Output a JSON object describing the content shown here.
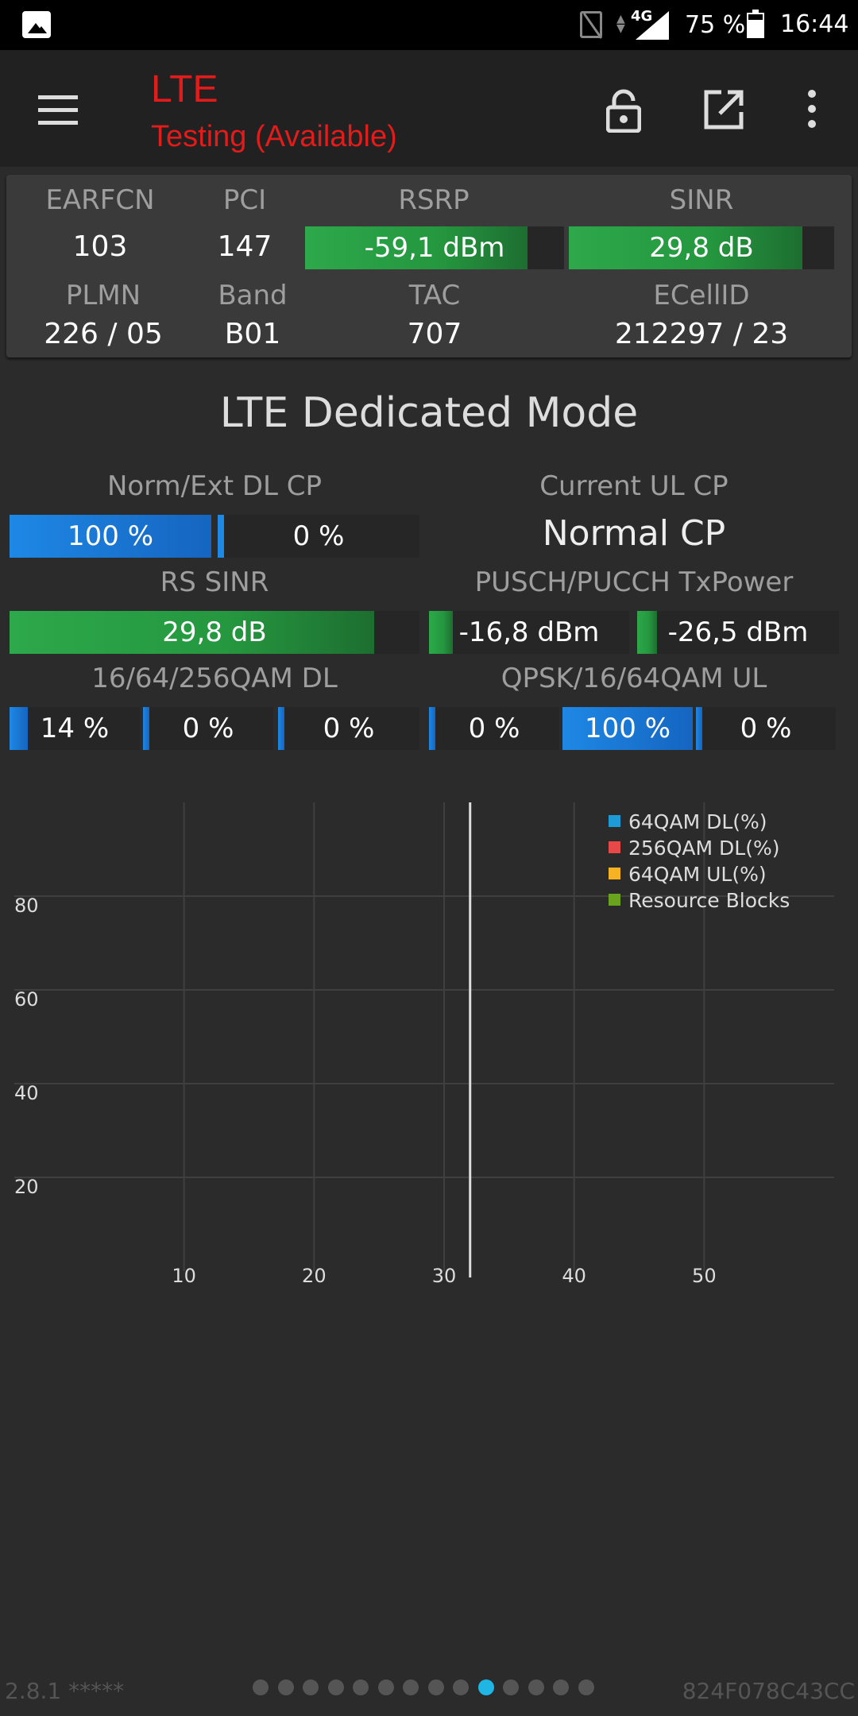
{
  "status_bar": {
    "network": "4G",
    "battery": "75 %",
    "time": "16:44",
    "icons": [
      "photo-icon",
      "no-sim-icon",
      "signal-icon",
      "battery-icon"
    ]
  },
  "app_bar": {
    "title": "LTE",
    "subtitle": "Testing (Available)",
    "title_color": "#e21b1b",
    "icons": [
      "menu-icon",
      "lock-icon",
      "open-external-icon",
      "more-vert-icon"
    ]
  },
  "summary": {
    "earfcn": {
      "label": "EARFCN",
      "value": "103"
    },
    "pci": {
      "label": "PCI",
      "value": "147"
    },
    "rsrp": {
      "label": "RSRP",
      "value": "-59,1 dBm",
      "level": 0.86
    },
    "sinr": {
      "label": "SINR",
      "value": "29,8 dB",
      "level": 0.88
    },
    "plmn": {
      "label": "PLMN",
      "value": "226 / 05"
    },
    "band": {
      "label": "Band",
      "value": "B01"
    },
    "tac": {
      "label": "TAC",
      "value": "707"
    },
    "ecellid": {
      "label": "ECellID",
      "value": "212297 / 23"
    }
  },
  "section_title": "LTE Dedicated Mode",
  "dedicated": {
    "dl_cp": {
      "label": "Norm/Ext DL CP",
      "values": [
        "100 %",
        "0 %"
      ],
      "levels": [
        1.0,
        0.0
      ]
    },
    "ul_cp": {
      "label": "Current UL CP",
      "value": "Normal CP"
    },
    "rs_sinr": {
      "label": "RS SINR",
      "value": "29,8 dB",
      "level": 0.89
    },
    "tx_power": {
      "label": "PUSCH/PUCCH TxPower",
      "values": [
        "-16,8 dBm",
        "-26,5 dBm"
      ],
      "levels": [
        0.12,
        0.1
      ]
    },
    "qam_dl": {
      "label": "16/64/256QAM DL",
      "values": [
        "14 %",
        "0 %",
        "0 %"
      ],
      "levels": [
        0.14,
        0.0,
        0.0
      ]
    },
    "qam_ul": {
      "label": "QPSK/16/64QAM UL",
      "values": [
        "0 %",
        "100 %",
        "0 %"
      ],
      "levels": [
        0.0,
        1.0,
        0.0
      ]
    }
  },
  "chart_data": {
    "type": "line",
    "x_ticks": [
      "10",
      "20",
      "30",
      "40",
      "50"
    ],
    "y_ticks": [
      "20",
      "40",
      "60",
      "80"
    ],
    "xlim": [
      0,
      60
    ],
    "ylim": [
      0,
      100
    ],
    "cursor_x": 32,
    "grid": true,
    "legend_position": "top-right",
    "series": [
      {
        "name": "64QAM DL(%)",
        "color": "#1e9ad6",
        "values": []
      },
      {
        "name": "256QAM DL(%)",
        "color": "#e84848",
        "values": []
      },
      {
        "name": "64QAM UL(%)",
        "color": "#f5b324",
        "values": []
      },
      {
        "name": "Resource Blocks",
        "color": "#6aa31e",
        "values": []
      }
    ]
  },
  "footer": {
    "version": "2.8.1 *****",
    "device_id": "824F078C43CC",
    "page_count": 14,
    "active_page": 10
  }
}
